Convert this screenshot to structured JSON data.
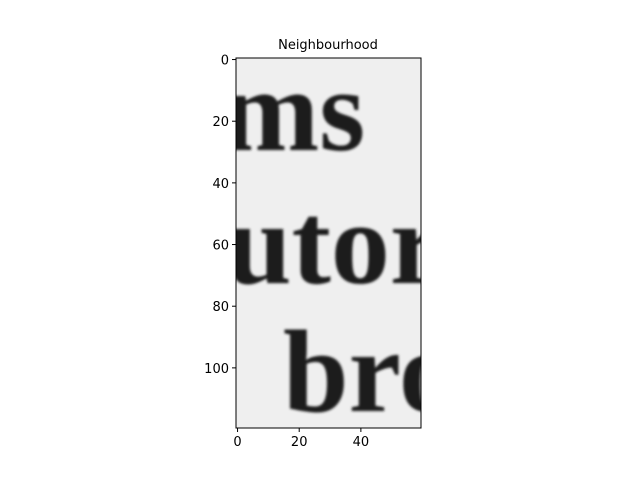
{
  "chart_data": {
    "type": "image",
    "title": "Neighbourhood",
    "image_text": [
      "ms",
      "utor",
      "bro"
    ],
    "xlim": [
      -0.5,
      59.5
    ],
    "ylim": [
      119.5,
      -0.5
    ],
    "xticks": [
      0,
      20,
      40
    ],
    "yticks": [
      0,
      20,
      40,
      60,
      80,
      100
    ]
  }
}
